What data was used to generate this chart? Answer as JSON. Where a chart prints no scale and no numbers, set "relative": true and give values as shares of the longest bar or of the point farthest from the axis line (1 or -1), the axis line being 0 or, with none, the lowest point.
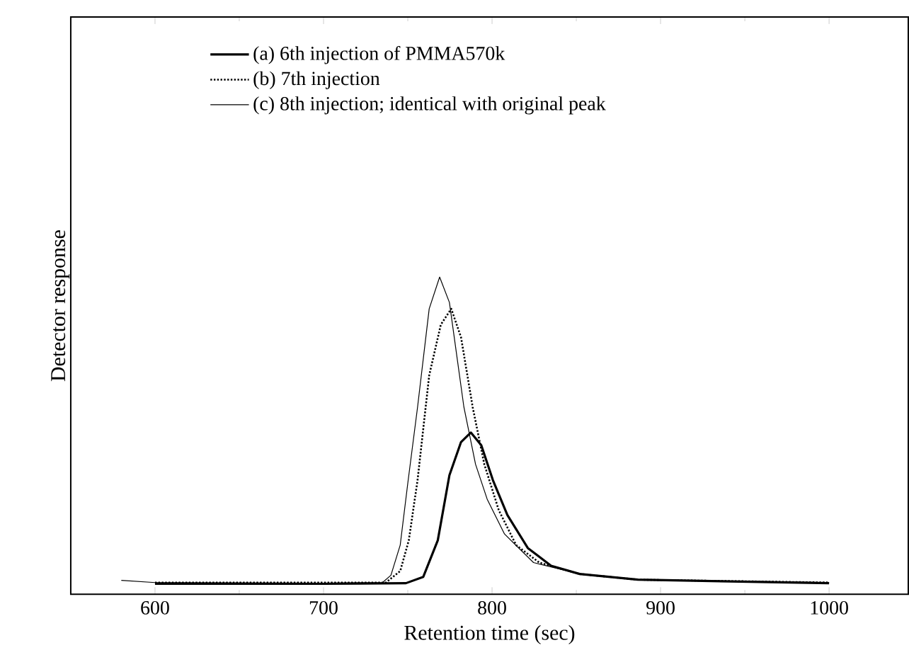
{
  "chart_data": {
    "type": "line",
    "relative": true,
    "xlabel": "Retention time (sec)",
    "ylabel": "Detector response",
    "xlim": [
      550,
      1047
    ],
    "xticks": [
      600,
      {
        "value": 650,
        "label": null
      },
      700,
      {
        "value": 750,
        "label": null
      },
      800,
      {
        "value": 850,
        "label": null
      },
      900,
      {
        "value": 950,
        "label": null
      },
      1000
    ],
    "legend": "top left",
    "grid": false,
    "series": [
      {
        "name": "(a) 6th injection of PMMA570k",
        "color": "#000000",
        "line_style": "solid",
        "x": [
          600,
          700,
          748.9,
          759.2,
          767.8,
          774.7,
          781.6,
          787.4,
          793.6,
          800.5,
          809.1,
          821.2,
          835,
          852,
          886.5,
          1000
        ],
        "values": [
          0.033,
          0.033,
          0.035,
          0.055,
          0.17,
          0.375,
          0.48,
          0.51,
          0.47,
          0.36,
          0.25,
          0.146,
          0.09,
          0.064,
          0.046,
          0.035
        ]
      },
      {
        "name": "(b) 7th injection",
        "color": "#000000",
        "line_style": "dotted",
        "x": [
          600,
          700,
          737,
          745.5,
          750.6,
          755.8,
          762.7,
          769.6,
          775.8,
          781.6,
          788.5,
          795.4,
          804,
          814.3,
          828,
          852,
          886.5,
          1000
        ],
        "values": [
          0.037,
          0.037,
          0.037,
          0.073,
          0.17,
          0.36,
          0.69,
          0.85,
          0.9,
          0.81,
          0.59,
          0.41,
          0.265,
          0.155,
          0.1,
          0.064,
          0.046,
          0.037
        ]
      },
      {
        "name": "(c) 8th injection; identical with original peak",
        "color": "#000000",
        "line_style": "solid",
        "x": [
          580,
          600,
          700,
          735,
          740,
          745.5,
          750,
          755.8,
          762.7,
          768.9,
          774.7,
          783.3,
          790.2,
          797.1,
          807.4,
          824.6,
          852.1,
          886.5,
          1000
        ],
        "values": [
          0.044,
          0.037,
          0.035,
          0.037,
          0.06,
          0.155,
          0.35,
          0.59,
          0.9,
          1.0,
          0.92,
          0.59,
          0.41,
          0.3,
          0.19,
          0.1,
          0.064,
          0.046,
          0.037
        ]
      }
    ]
  }
}
